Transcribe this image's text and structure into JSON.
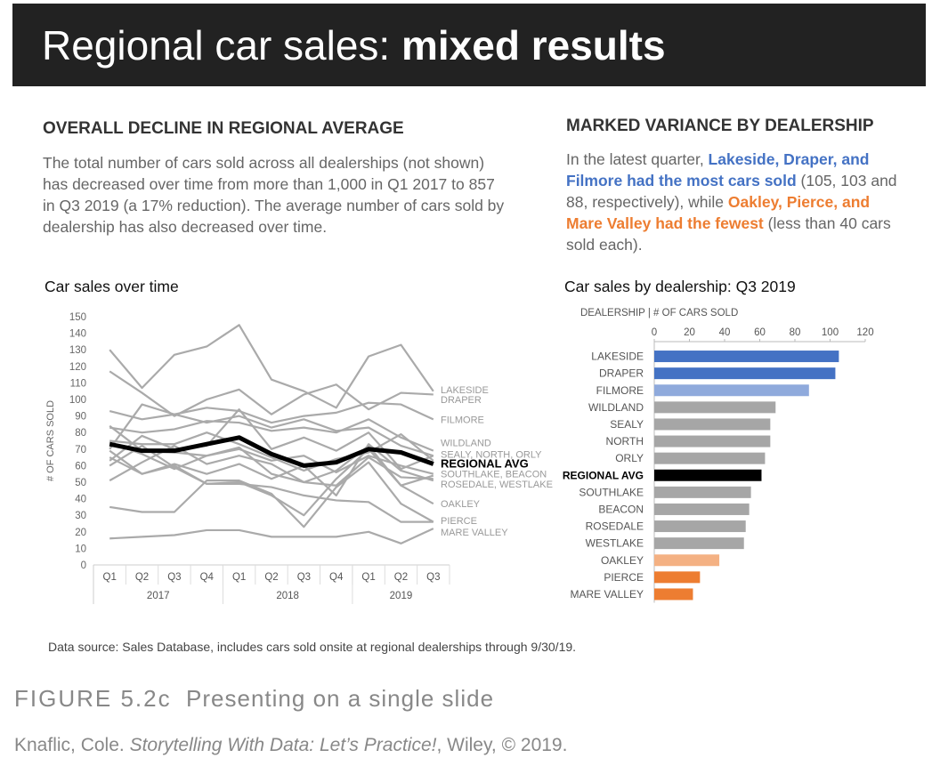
{
  "header": {
    "title_part1": "Regional car sales: ",
    "title_part2": "mixed results"
  },
  "left_panel": {
    "heading": "OVERALL DECLINE IN REGIONAL AVERAGE",
    "body": "The total number of cars sold across all dealerships (not shown) has decreased over time from more than 1,000 in Q1 2017 to 857 in Q3 2019 (a 17% reduction). The average number of cars sold by dealership has also decreased over time."
  },
  "right_panel": {
    "heading": "MARKED VARIANCE BY DEALERSHIP",
    "text1": "In the latest quarter, ",
    "text2": "Lakeside, Draper, and Filmore had the most cars sold",
    "text3": " (105, 103 and 88, respectively), while ",
    "text4": "Oakley, Pierce, and Mare Valley had the fewest",
    "text5": " (less than 40 cars sold each)."
  },
  "chart_data": [
    {
      "type": "line",
      "title": "Car sales over time",
      "ylabel": "# OF CARS SOLD",
      "ylim": [
        0,
        150
      ],
      "yticks": [
        0,
        10,
        20,
        30,
        40,
        50,
        60,
        70,
        80,
        90,
        100,
        110,
        120,
        130,
        140,
        150
      ],
      "categories": [
        "Q1",
        "Q2",
        "Q3",
        "Q4",
        "Q1",
        "Q2",
        "Q3",
        "Q4",
        "Q1",
        "Q2",
        "Q3"
      ],
      "year_groups": [
        {
          "label": "2017",
          "span": 4
        },
        {
          "label": "2018",
          "span": 4
        },
        {
          "label": "2019",
          "span": 3
        }
      ],
      "highlight_color": "#000000",
      "series_color": "#AAAAAA",
      "series": [
        {
          "values": [
            130,
            107,
            127,
            132,
            145,
            112,
            105,
            95,
            126,
            133,
            105
          ]
        },
        {
          "values": [
            117,
            104,
            90,
            100,
            106,
            91,
            103,
            109,
            94,
            104,
            103
          ]
        },
        {
          "values": [
            93,
            88,
            91,
            95,
            93,
            86,
            90,
            92,
            98,
            97,
            88
          ]
        },
        {
          "values": [
            83,
            80,
            82,
            87,
            86,
            81,
            83,
            80,
            88,
            77,
            69
          ]
        },
        {
          "values": [
            70,
            97,
            91,
            86,
            90,
            83,
            88,
            81,
            83,
            72,
            66
          ]
        },
        {
          "values": [
            63,
            78,
            70,
            72,
            94,
            70,
            77,
            69,
            80,
            58,
            66
          ]
        },
        {
          "values": [
            75,
            73,
            73,
            80,
            73,
            65,
            57,
            64,
            68,
            79,
            63
          ]
        },
        {
          "values": [
            84,
            69,
            68,
            66,
            70,
            63,
            66,
            56,
            66,
            60,
            55
          ]
        },
        {
          "values": [
            74,
            67,
            58,
            66,
            71,
            55,
            50,
            57,
            72,
            48,
            54
          ]
        },
        {
          "values": [
            51,
            62,
            72,
            61,
            66,
            61,
            50,
            48,
            65,
            53,
            52
          ]
        },
        {
          "values": [
            65,
            55,
            61,
            55,
            61,
            52,
            60,
            42,
            73,
            57,
            51
          ]
        },
        {
          "values": [
            60,
            72,
            59,
            49,
            50,
            42,
            30,
            52,
            70,
            48,
            37
          ]
        },
        {
          "values": [
            69,
            55,
            60,
            49,
            49,
            47,
            42,
            39,
            38,
            26,
            26
          ]
        },
        {
          "values": [
            35,
            32,
            32,
            51,
            51,
            43,
            23,
            47,
            62,
            37,
            26
          ]
        },
        {
          "values": [
            16,
            17,
            18,
            21,
            21,
            17,
            17,
            17,
            20,
            13,
            22
          ]
        }
      ],
      "highlight_series": {
        "name": "REGIONAL AVG",
        "values": [
          73,
          69,
          69,
          73,
          77,
          67,
          60,
          62,
          70,
          68,
          61
        ]
      },
      "end_labels": [
        {
          "text": "LAKESIDE",
          "value": 106
        },
        {
          "text": "DRAPER",
          "value": 100
        },
        {
          "text": "FILMORE",
          "value": 88
        },
        {
          "text": "WILDLAND",
          "value": 74
        },
        {
          "text": "SEALY, NORTH, ORLY",
          "value": 67
        },
        {
          "text": "REGIONAL AVG",
          "value": 61,
          "bold": true
        },
        {
          "text": "SOUTHLAKE, BEACON",
          "value": 55
        },
        {
          "text": "ROSEDALE, WESTLAKE",
          "value": 49
        },
        {
          "text": "OAKLEY",
          "value": 37
        },
        {
          "text": "PIERCE",
          "value": 27
        },
        {
          "text": "MARE VALLEY",
          "value": 20
        }
      ]
    },
    {
      "type": "bar",
      "orientation": "horizontal",
      "title": "Car sales by dealership: Q3 2019",
      "axis_title": "DEALERSHIP | # OF CARS SOLD",
      "xlim": [
        0,
        120
      ],
      "xticks": [
        0,
        20,
        40,
        60,
        80,
        100,
        120
      ],
      "categories": [
        "LAKESIDE",
        "DRAPER",
        "FILMORE",
        "WILDLAND",
        "SEALY",
        "NORTH",
        "ORLY",
        "REGIONAL AVG",
        "SOUTHLAKE",
        "BEACON",
        "ROSEDALE",
        "WESTLAKE",
        "OAKLEY",
        "PIERCE",
        "MARE VALLEY"
      ],
      "values": [
        105,
        103,
        88,
        69,
        66,
        66,
        63,
        61,
        55,
        54,
        52,
        51,
        37,
        26,
        22
      ],
      "colors": [
        "#4472C4",
        "#4472C4",
        "#8FAADC",
        "#A6A6A6",
        "#A6A6A6",
        "#A6A6A6",
        "#A6A6A6",
        "#000000",
        "#A6A6A6",
        "#A6A6A6",
        "#A6A6A6",
        "#A6A6A6",
        "#F4B183",
        "#ED7D31",
        "#ED7D31"
      ],
      "bold_category": "REGIONAL AVG"
    }
  ],
  "footer": {
    "source": "Data source: Sales Database, includes cars sold onsite at regional dealerships through 9/30/19.",
    "figure_label": "FIGURE 5.2c",
    "figure_caption": "Presenting on a single slide",
    "cite_author": "Knaflic, Cole. ",
    "cite_title": "Storytelling With Data: Let’s Practice!",
    "cite_rest": ", Wiley, © 2019."
  }
}
